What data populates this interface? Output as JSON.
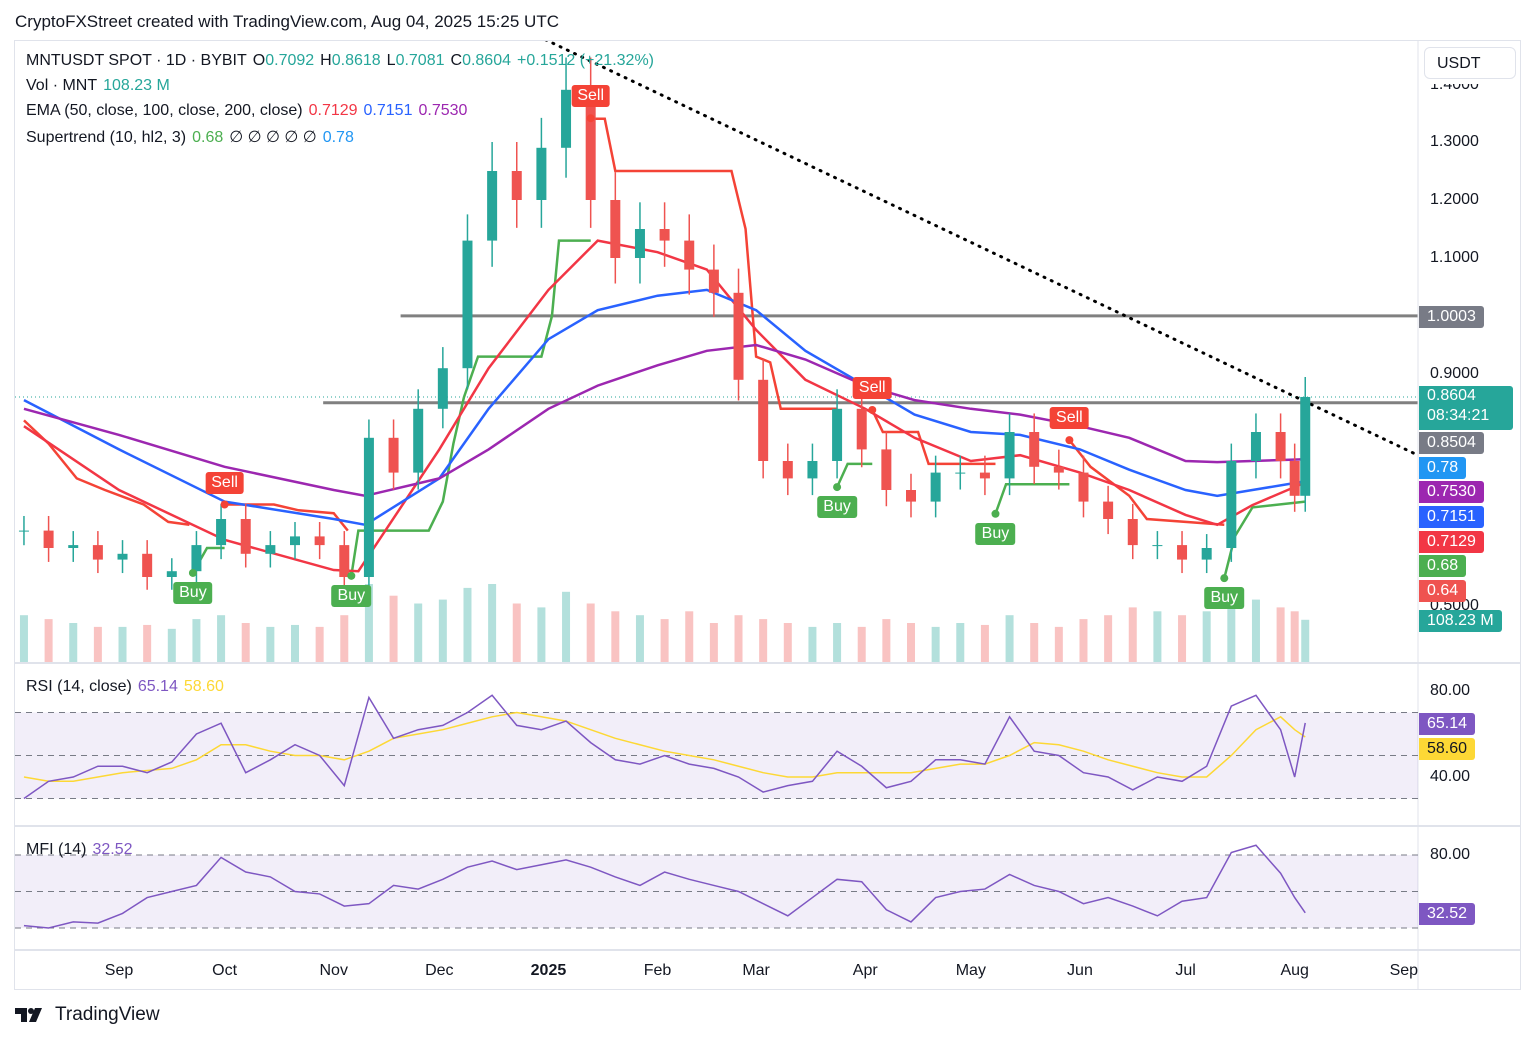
{
  "header": {
    "title": "CryptoFXStreet created with TradingView.com, Aug 04, 2025 15:25 UTC"
  },
  "legend": {
    "symbol": "MNTUSDT SPOT · 1D · BYBIT",
    "o_label": "O",
    "o": "0.7092",
    "h_label": "H",
    "h": "0.8618",
    "l_label": "L",
    "l": "0.7081",
    "c_label": "C",
    "c": "0.8604",
    "change": "+0.1512 (+21.32%)",
    "vol_label": "Vol · MNT",
    "vol": "108.23 M",
    "ema_label": "EMA (50, close, 100, close, 200, close)",
    "ema50": "0.7129",
    "ema100": "0.7151",
    "ema200": "0.7530",
    "st_label": "Supertrend (10, hl2, 3)",
    "st_up": "0.68",
    "st_empty": "∅ ∅ ∅ ∅ ∅",
    "st_down": "0.78",
    "rsi_label": "RSI (14, close)",
    "rsi": "65.14",
    "rsi_ma": "58.60",
    "mfi_label": "MFI (14)",
    "mfi": "32.52"
  },
  "price_axis": {
    "currency": "USDT",
    "ticks": [
      "1.4000",
      "1.3000",
      "1.2000",
      "1.1000",
      "0.9000",
      "0.5000"
    ],
    "tags": {
      "level_high": "1.0003",
      "last": "0.8604",
      "countdown": "08:34:21",
      "level_low": "0.8504",
      "st_down": "0.78",
      "ema200": "0.7530",
      "ema100": "0.7151",
      "ema50": "0.7129",
      "st_up": "0.68",
      "st_last": "0.64",
      "volume": "108.23 M"
    }
  },
  "rsi_axis": {
    "ticks": [
      "80.00",
      "40.00"
    ],
    "tags": {
      "rsi": "65.14",
      "ma": "58.60"
    }
  },
  "mfi_axis": {
    "ticks": [
      "80.00"
    ],
    "tags": {
      "mfi": "32.52"
    }
  },
  "time_axis": [
    {
      "label": "Sep",
      "date": "2024-09-01"
    },
    {
      "label": "Oct",
      "date": "2024-10-01"
    },
    {
      "label": "Nov",
      "date": "2024-11-01"
    },
    {
      "label": "Dec",
      "date": "2024-12-01"
    },
    {
      "label": "2025",
      "date": "2025-01-01",
      "bold": true
    },
    {
      "label": "Feb",
      "date": "2025-02-01"
    },
    {
      "label": "Mar",
      "date": "2025-03-01"
    },
    {
      "label": "Apr",
      "date": "2025-04-01"
    },
    {
      "label": "May",
      "date": "2025-05-01"
    },
    {
      "label": "Jun",
      "date": "2025-06-01"
    },
    {
      "label": "Jul",
      "date": "2025-07-01"
    },
    {
      "label": "Aug",
      "date": "2025-08-01"
    },
    {
      "label": "Sep",
      "date": "2025-09-01"
    }
  ],
  "footer": {
    "brand": "TradingView"
  },
  "colors": {
    "up": "#26a69a",
    "down": "#ef5350",
    "ema50": "#f23645",
    "ema100": "#2962ff",
    "ema200": "#9c27b0",
    "st_up": "#4caf50",
    "st_down": "#f44336",
    "rsi": "#7e57c2",
    "rsi_ma": "#fdd835",
    "level": "#808080"
  },
  "chart_data": {
    "type": "candlestick",
    "dates": [
      "2024-08-05",
      "2024-08-12",
      "2024-08-19",
      "2024-08-26",
      "2024-09-02",
      "2024-09-09",
      "2024-09-16",
      "2024-09-23",
      "2024-09-30",
      "2024-10-07",
      "2024-10-14",
      "2024-10-21",
      "2024-10-28",
      "2024-11-04",
      "2024-11-11",
      "2024-11-18",
      "2024-11-25",
      "2024-12-02",
      "2024-12-09",
      "2024-12-16",
      "2024-12-23",
      "2024-12-30",
      "2025-01-06",
      "2025-01-13",
      "2025-01-20",
      "2025-01-27",
      "2025-02-03",
      "2025-02-10",
      "2025-02-17",
      "2025-02-24",
      "2025-03-03",
      "2025-03-10",
      "2025-03-17",
      "2025-03-24",
      "2025-03-31",
      "2025-04-07",
      "2025-04-14",
      "2025-04-21",
      "2025-04-28",
      "2025-05-05",
      "2025-05-12",
      "2025-05-19",
      "2025-05-26",
      "2025-06-02",
      "2025-06-09",
      "2025-06-16",
      "2025-06-23",
      "2025-06-30",
      "2025-07-07",
      "2025-07-14",
      "2025-07-21",
      "2025-07-28",
      "2025-08-01",
      "2025-08-04"
    ],
    "close": [
      0.63,
      0.6,
      0.605,
      0.58,
      0.59,
      0.55,
      0.56,
      0.605,
      0.65,
      0.59,
      0.605,
      0.62,
      0.605,
      0.55,
      0.79,
      0.73,
      0.84,
      0.91,
      1.13,
      1.25,
      1.2,
      1.29,
      1.39,
      1.2,
      1.1,
      1.15,
      1.13,
      1.08,
      1.04,
      0.89,
      0.75,
      0.72,
      0.75,
      0.84,
      0.77,
      0.7,
      0.68,
      0.73,
      0.73,
      0.72,
      0.8,
      0.74,
      0.73,
      0.68,
      0.65,
      0.605,
      0.605,
      0.58,
      0.6,
      0.75,
      0.8,
      0.75,
      0.69,
      0.8604
    ],
    "volume_m": [
      120,
      110,
      100,
      90,
      90,
      95,
      85,
      110,
      120,
      100,
      90,
      95,
      90,
      120,
      200,
      170,
      150,
      160,
      190,
      200,
      150,
      140,
      180,
      150,
      130,
      120,
      110,
      130,
      100,
      120,
      110,
      100,
      90,
      100,
      90,
      110,
      100,
      90,
      100,
      95,
      120,
      100,
      90,
      110,
      120,
      140,
      130,
      120,
      130,
      180,
      160,
      140,
      130,
      108.23
    ],
    "ema": [
      {
        "name": "EMA 50",
        "color_key": "ema50",
        "points": [
          [
            "2024-08-05",
            0.81
          ],
          [
            "2024-09-01",
            0.7
          ],
          [
            "2024-10-01",
            0.614
          ],
          [
            "2024-11-01",
            0.562
          ],
          [
            "2024-11-08",
            0.56
          ],
          [
            "2024-12-01",
            0.77
          ],
          [
            "2024-12-15",
            0.91
          ],
          [
            "2025-01-01",
            1.045
          ],
          [
            "2025-01-15",
            1.13
          ],
          [
            "2025-02-01",
            1.11
          ],
          [
            "2025-02-15",
            1.08
          ],
          [
            "2025-03-01",
            0.976
          ],
          [
            "2025-03-15",
            0.89
          ],
          [
            "2025-04-01",
            0.84
          ],
          [
            "2025-04-15",
            0.79
          ],
          [
            "2025-05-01",
            0.75
          ],
          [
            "2025-05-15",
            0.76
          ],
          [
            "2025-06-01",
            0.73
          ],
          [
            "2025-06-15",
            0.7
          ],
          [
            "2025-07-01",
            0.657
          ],
          [
            "2025-07-10",
            0.64
          ],
          [
            "2025-07-20",
            0.674
          ],
          [
            "2025-08-04",
            0.7129
          ]
        ]
      },
      {
        "name": "EMA 100",
        "color_key": "ema100",
        "points": [
          [
            "2024-08-05",
            0.855
          ],
          [
            "2024-09-01",
            0.77
          ],
          [
            "2024-10-01",
            0.68
          ],
          [
            "2024-11-01",
            0.65
          ],
          [
            "2024-11-10",
            0.64
          ],
          [
            "2024-12-01",
            0.72
          ],
          [
            "2024-12-15",
            0.84
          ],
          [
            "2025-01-01",
            0.96
          ],
          [
            "2025-01-15",
            1.01
          ],
          [
            "2025-02-01",
            1.035
          ],
          [
            "2025-02-15",
            1.045
          ],
          [
            "2025-03-01",
            1.01
          ],
          [
            "2025-03-15",
            0.94
          ],
          [
            "2025-04-01",
            0.88
          ],
          [
            "2025-04-15",
            0.83
          ],
          [
            "2025-05-01",
            0.8
          ],
          [
            "2025-05-15",
            0.795
          ],
          [
            "2025-06-01",
            0.77
          ],
          [
            "2025-06-15",
            0.735
          ],
          [
            "2025-07-01",
            0.7
          ],
          [
            "2025-07-10",
            0.69
          ],
          [
            "2025-07-20",
            0.7
          ],
          [
            "2025-08-04",
            0.7151
          ]
        ]
      },
      {
        "name": "EMA 200",
        "color_key": "ema200",
        "points": [
          [
            "2024-08-05",
            0.84
          ],
          [
            "2024-09-01",
            0.795
          ],
          [
            "2024-10-01",
            0.74
          ],
          [
            "2024-11-01",
            0.7
          ],
          [
            "2024-11-10",
            0.69
          ],
          [
            "2024-12-01",
            0.72
          ],
          [
            "2024-12-15",
            0.77
          ],
          [
            "2025-01-01",
            0.84
          ],
          [
            "2025-01-15",
            0.88
          ],
          [
            "2025-02-01",
            0.915
          ],
          [
            "2025-02-15",
            0.94
          ],
          [
            "2025-03-01",
            0.95
          ],
          [
            "2025-03-15",
            0.925
          ],
          [
            "2025-04-01",
            0.88
          ],
          [
            "2025-04-15",
            0.855
          ],
          [
            "2025-05-01",
            0.84
          ],
          [
            "2025-05-15",
            0.83
          ],
          [
            "2025-06-01",
            0.81
          ],
          [
            "2025-06-15",
            0.79
          ],
          [
            "2025-07-01",
            0.75
          ],
          [
            "2025-07-10",
            0.748
          ],
          [
            "2025-08-04",
            0.753
          ]
        ]
      }
    ],
    "supertrend": [
      {
        "dir": "down",
        "points": [
          [
            "2024-08-05",
            0.82
          ],
          [
            "2024-08-12",
            0.78
          ],
          [
            "2024-08-20",
            0.72
          ],
          [
            "2024-08-28",
            0.7
          ],
          [
            "2024-09-08",
            0.675
          ],
          [
            "2024-09-15",
            0.645
          ],
          [
            "2024-09-21",
            0.64
          ]
        ]
      },
      {
        "dir": "up",
        "points": [
          [
            "2024-09-22",
            0.557
          ],
          [
            "2024-09-26",
            0.6
          ],
          [
            "2024-10-01",
            0.6
          ]
        ]
      },
      {
        "dir": "down",
        "points": [
          [
            "2024-10-01",
            0.675
          ],
          [
            "2024-10-15",
            0.675
          ],
          [
            "2024-10-22",
            0.665
          ],
          [
            "2024-11-01",
            0.66
          ],
          [
            "2024-11-05",
            0.63
          ]
        ]
      },
      {
        "dir": "up",
        "points": [
          [
            "2024-11-06",
            0.552
          ],
          [
            "2024-11-08",
            0.63
          ],
          [
            "2024-11-28",
            0.63
          ],
          [
            "2024-12-02",
            0.68
          ],
          [
            "2024-12-05",
            0.78
          ],
          [
            "2024-12-08",
            0.86
          ],
          [
            "2024-12-12",
            0.93
          ],
          [
            "2024-12-30",
            0.93
          ],
          [
            "2025-01-02",
            1.0
          ],
          [
            "2025-01-04",
            1.13
          ],
          [
            "2025-01-13",
            1.13
          ]
        ]
      },
      {
        "dir": "down",
        "points": [
          [
            "2025-01-13",
            1.34
          ],
          [
            "2025-01-17",
            1.34
          ],
          [
            "2025-01-20",
            1.25
          ],
          [
            "2025-02-22",
            1.25
          ],
          [
            "2025-02-26",
            1.15
          ],
          [
            "2025-03-01",
            0.93
          ],
          [
            "2025-03-05",
            0.92
          ],
          [
            "2025-03-08",
            0.84
          ],
          [
            "2025-03-24",
            0.84
          ]
        ]
      },
      {
        "dir": "up",
        "points": [
          [
            "2025-03-24",
            0.705
          ],
          [
            "2025-03-27",
            0.745
          ],
          [
            "2025-04-03",
            0.745
          ]
        ]
      },
      {
        "dir": "down",
        "points": [
          [
            "2025-04-03",
            0.838
          ],
          [
            "2025-04-06",
            0.8
          ],
          [
            "2025-04-16",
            0.8
          ],
          [
            "2025-04-19",
            0.745
          ],
          [
            "2025-05-08",
            0.745
          ]
        ]
      },
      {
        "dir": "up",
        "points": [
          [
            "2025-05-08",
            0.659
          ],
          [
            "2025-05-11",
            0.71
          ],
          [
            "2025-05-29",
            0.71
          ]
        ]
      },
      {
        "dir": "down",
        "points": [
          [
            "2025-05-29",
            0.786
          ],
          [
            "2025-06-04",
            0.74
          ],
          [
            "2025-06-15",
            0.69
          ],
          [
            "2025-06-20",
            0.65
          ],
          [
            "2025-07-12",
            0.64
          ]
        ]
      },
      {
        "dir": "up",
        "points": [
          [
            "2025-07-12",
            0.548
          ],
          [
            "2025-07-15",
            0.62
          ],
          [
            "2025-07-20",
            0.67
          ],
          [
            "2025-08-04",
            0.68
          ]
        ]
      }
    ],
    "signals": [
      {
        "type": "buy",
        "label": "Buy",
        "date": "2024-09-22",
        "price": 0.557
      },
      {
        "type": "sell",
        "label": "Sell",
        "date": "2024-10-01",
        "price": 0.675
      },
      {
        "type": "buy",
        "label": "Buy",
        "date": "2024-11-06",
        "price": 0.552
      },
      {
        "type": "sell",
        "label": "Sell",
        "date": "2025-01-13",
        "price": 1.341
      },
      {
        "type": "buy",
        "label": "Buy",
        "date": "2025-03-24",
        "price": 0.705
      },
      {
        "type": "sell",
        "label": "Sell",
        "date": "2025-04-03",
        "price": 0.838
      },
      {
        "type": "buy",
        "label": "Buy",
        "date": "2025-05-08",
        "price": 0.659
      },
      {
        "type": "sell",
        "label": "Sell",
        "date": "2025-05-29",
        "price": 0.786
      },
      {
        "type": "buy",
        "label": "Buy",
        "date": "2025-07-12",
        "price": 0.548
      }
    ],
    "levels": [
      {
        "price": 1.0003,
        "from": "2024-11-20"
      },
      {
        "price": 0.8504,
        "from": "2024-10-29"
      }
    ],
    "trendline": {
      "from": [
        "2024-12-23",
        1.5
      ],
      "to": [
        "2025-09-05",
        0.76
      ],
      "style": "dotted"
    },
    "rsi": [
      30,
      38,
      40,
      45,
      45,
      42,
      47,
      60,
      65,
      42,
      48,
      55,
      50,
      36,
      77,
      58,
      62,
      64,
      70,
      78,
      64,
      62,
      66,
      56,
      48,
      46,
      50,
      46,
      44,
      40,
      33,
      36,
      38,
      52,
      45,
      35,
      38,
      48,
      48,
      46,
      68,
      52,
      50,
      42,
      40,
      34,
      40,
      38,
      45,
      73,
      78,
      62,
      40,
      65.14
    ],
    "rsi_ma": [
      40,
      38,
      38,
      40,
      42,
      43,
      44,
      48,
      55,
      55,
      52,
      50,
      50,
      48,
      52,
      58,
      60,
      62,
      65,
      68,
      70,
      68,
      66,
      62,
      58,
      55,
      52,
      50,
      48,
      45,
      42,
      40,
      40,
      42,
      42,
      42,
      42,
      44,
      46,
      46,
      50,
      56,
      55,
      52,
      48,
      45,
      42,
      40,
      40,
      50,
      62,
      68,
      62,
      58.6
    ],
    "rsi_bands": [
      70,
      50,
      30
    ],
    "mfi": [
      22,
      20,
      25,
      24,
      32,
      45,
      50,
      55,
      78,
      66,
      62,
      50,
      48,
      38,
      40,
      55,
      52,
      60,
      70,
      75,
      68,
      72,
      76,
      70,
      62,
      55,
      66,
      60,
      55,
      50,
      40,
      30,
      45,
      60,
      58,
      35,
      25,
      45,
      50,
      52,
      64,
      55,
      50,
      40,
      45,
      38,
      30,
      42,
      45,
      82,
      88,
      65,
      45,
      32.52
    ],
    "mfi_bands": [
      80,
      50,
      20
    ],
    "price_scale": "linear"
  }
}
